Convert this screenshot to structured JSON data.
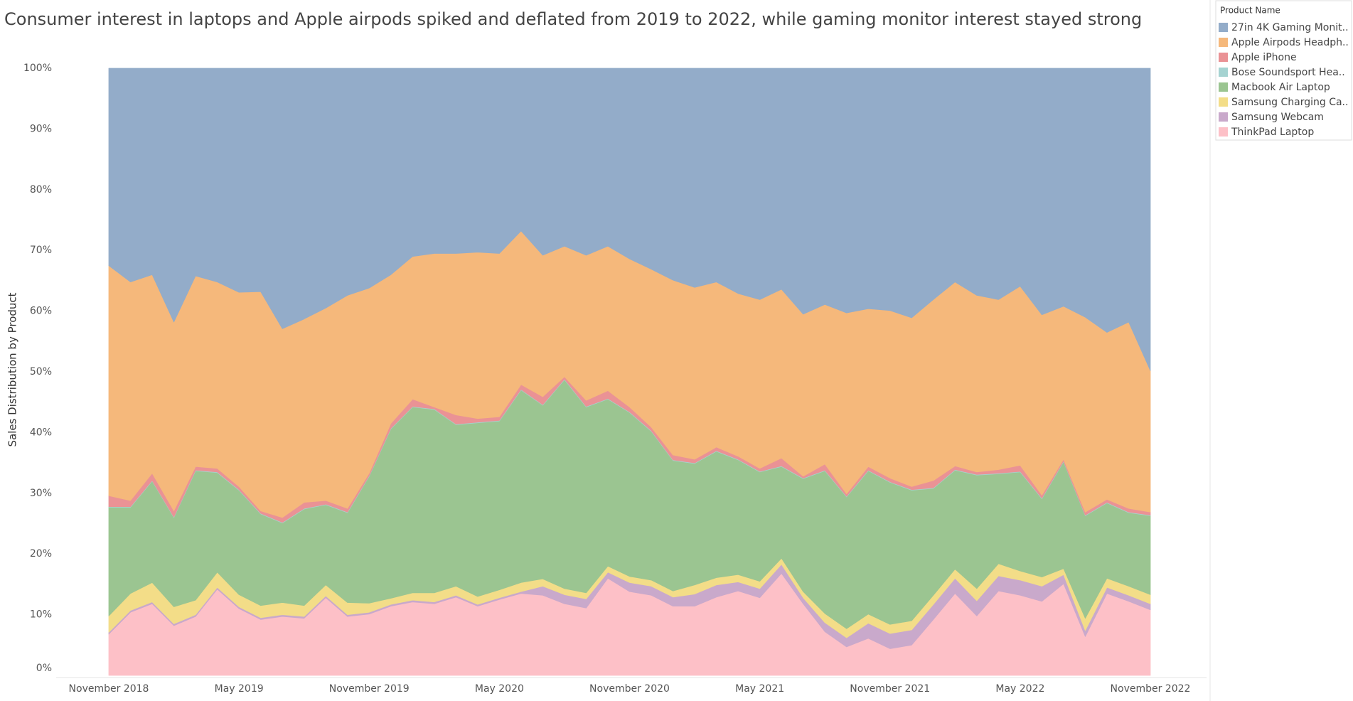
{
  "chart_data": {
    "type": "stacked_area",
    "title": "Consumer interest in laptops and Apple airpods spiked and deflated from 2019 to 2022, while gaming monitor interest stayed strong",
    "y_label": "Sales Distribution by Product",
    "legend_title": "Product Name",
    "legend": "right",
    "grid": false,
    "ylim": [
      0,
      100
    ],
    "yticks": [
      {
        "value": 0,
        "label": "0%"
      },
      {
        "value": 10,
        "label": "10%"
      },
      {
        "value": 20,
        "label": "20%"
      },
      {
        "value": 30,
        "label": "30%"
      },
      {
        "value": 40,
        "label": "40%"
      },
      {
        "value": 50,
        "label": "50%"
      },
      {
        "value": 60,
        "label": "60%"
      },
      {
        "value": 70,
        "label": "70%"
      },
      {
        "value": 80,
        "label": "80%"
      },
      {
        "value": 90,
        "label": "90%"
      },
      {
        "value": 100,
        "label": "100%"
      }
    ],
    "categories": [
      "November 2018",
      null,
      null,
      null,
      null,
      null,
      "May 2019",
      null,
      null,
      null,
      null,
      null,
      "November 2019",
      null,
      null,
      null,
      null,
      null,
      "May 2020",
      null,
      null,
      null,
      null,
      null,
      "November 2020",
      null,
      null,
      null,
      null,
      null,
      "May 2021",
      null,
      null,
      null,
      null,
      null,
      "November 2021",
      null,
      null,
      null,
      null,
      null,
      "May 2022",
      null,
      null,
      null,
      null,
      null,
      "November 2022"
    ],
    "series": [
      {
        "name": "27in 4K Gaming Monit..",
        "color": "#93acc9",
        "values": [
          32.5,
          35.2,
          34,
          41.8,
          34.2,
          35.2,
          36.9,
          36.8,
          42.9,
          41.3,
          39.5,
          37.4,
          36.2,
          34,
          31,
          30.5,
          30.5,
          30.3,
          30.5,
          26.8,
          30.8,
          29.3,
          30.8,
          29.3,
          31.4,
          33.1,
          34.9,
          36.1,
          35.2,
          37.1,
          38.1,
          36.4,
          40.5,
          38.9,
          40.3,
          39.6,
          39.9,
          41.1,
          38.1,
          35.2,
          37.4,
          38.1,
          35.9,
          40.6,
          39.2,
          41,
          43.5,
          41.8,
          49.8
        ]
      },
      {
        "name": "Apple Airpods Headph..",
        "color": "#f5b87b",
        "values": [
          37.9,
          36,
          32.7,
          31.1,
          31.4,
          30.7,
          32,
          36.1,
          31.1,
          30.2,
          31.7,
          35.1,
          30.5,
          24.5,
          23.5,
          25.3,
          26.6,
          27.4,
          26.9,
          25.3,
          23.3,
          21.5,
          23.9,
          23.8,
          24.4,
          26,
          28.8,
          28.3,
          27.2,
          26.8,
          27.8,
          27.8,
          26.7,
          26.3,
          29.8,
          26,
          27.6,
          27.8,
          29.8,
          30.3,
          29.1,
          28,
          29.5,
          29.7,
          25.2,
          32.1,
          27.5,
          30.7,
          23.3
        ]
      },
      {
        "name": "Apple iPhone",
        "color": "#ea9295",
        "values": [
          1.8,
          1,
          1.2,
          1,
          0.6,
          0.6,
          0.5,
          0.4,
          0.8,
          1,
          0.6,
          0.6,
          0.4,
          0.8,
          1.2,
          0.3,
          1.5,
          0.6,
          0.6,
          0.8,
          1.3,
          0.4,
          1,
          1.3,
          0.8,
          0.6,
          0.8,
          0.6,
          0.6,
          0.5,
          0.5,
          1.3,
          0.3,
          1,
          0.4,
          0.6,
          0.6,
          0.5,
          1.2,
          0.6,
          0.4,
          0.6,
          1,
          0.5,
          0.3,
          0.5,
          0.5,
          0.6,
          0.5
        ]
      },
      {
        "name": "Bose Soundsport Hea..",
        "color": "#a5d3d1",
        "values": [
          0.1,
          0.1,
          0.1,
          0.1,
          0.1,
          0.1,
          0.1,
          0.1,
          0.1,
          0.1,
          0.1,
          0.1,
          0.1,
          0.1,
          0.1,
          0.1,
          0.1,
          0.1,
          0.1,
          0.1,
          0.1,
          0.1,
          0.1,
          0.1,
          0.1,
          0.1,
          0.1,
          0.1,
          0.1,
          0.1,
          0.1,
          0.1,
          0.1,
          0.1,
          0.1,
          0.1,
          0.1,
          0.1,
          0.1,
          0.1,
          0.1,
          0.1,
          0.1,
          0.1,
          0.1,
          0.1,
          0.1,
          0.1,
          0.1
        ]
      },
      {
        "name": "Macbook Air Laptop",
        "color": "#9bc591",
        "values": [
          17.9,
          14.2,
          16.7,
          14.7,
          21.3,
          16.4,
          17.2,
          15.1,
          13.1,
          15.9,
          13.2,
          14.8,
          20.9,
          27.9,
          30.6,
          30.2,
          26.6,
          28.6,
          27.8,
          31.7,
          28.6,
          34.4,
          30.6,
          27.5,
          27,
          24.5,
          21.5,
          20,
          20.8,
          18.9,
          18,
          15.1,
          18.6,
          23.5,
          21.7,
          23.6,
          23.4,
          21.5,
          17.6,
          16.3,
          18.7,
          14.8,
          16.3,
          12.9,
          17.6,
          16.9,
          12.4,
          12.1,
          13
        ]
      },
      {
        "name": "Samsung Charging Ca..",
        "color": "#f3dd88",
        "values": [
          2.7,
          2.8,
          3.2,
          2.8,
          2.4,
          2.5,
          2,
          2,
          2,
          1.8,
          1.8,
          2,
          1.5,
          1,
          1.2,
          1.5,
          1.5,
          1.3,
          1.3,
          1.5,
          1.2,
          1,
          1,
          1,
          1,
          1,
          1,
          1.5,
          1.2,
          1.2,
          1.2,
          1,
          1,
          1.5,
          1.5,
          1.5,
          1.5,
          1.5,
          1.5,
          1.5,
          2,
          2,
          1.5,
          1.5,
          1,
          2,
          1.5,
          1.5,
          1.5
        ]
      },
      {
        "name": "Samsung Webcam",
        "color": "#c9a9cb",
        "values": [
          0.3,
          0.3,
          0.3,
          0.3,
          0.3,
          0.3,
          0.3,
          0.3,
          0.3,
          0.3,
          0.3,
          0.3,
          0.3,
          0.3,
          0.3,
          0.3,
          0.3,
          0.3,
          0.3,
          0.3,
          1.5,
          1.5,
          1.5,
          1,
          1.5,
          1.5,
          1.5,
          2,
          2,
          1.5,
          1.5,
          1.5,
          1,
          1.5,
          1.5,
          2.5,
          2.5,
          2.5,
          2.5,
          2.5,
          2.5,
          2.5,
          2.5,
          2.5,
          1.5,
          1,
          1,
          1,
          1
        ]
      },
      {
        "name": "ThinkPad Laptop",
        "color": "#fdc0c7",
        "values": [
          6.8,
          10.4,
          11.8,
          8.2,
          9.7,
          14.2,
          11,
          9.2,
          9.7,
          9.4,
          12.8,
          9.7,
          10.1,
          11.4,
          12.1,
          11.8,
          12.9,
          11.4,
          12.5,
          13.5,
          13.2,
          11.8,
          11.1,
          16,
          13.8,
          13.2,
          11.4,
          11.4,
          12.9,
          13.9,
          12.8,
          16.8,
          11.8,
          7.2,
          4.7,
          6.1,
          4.4,
          5,
          9.2,
          13.5,
          9.8,
          13.9,
          13.2,
          12.2,
          15.1,
          6.4,
          13.5,
          12.2,
          10.8
        ]
      }
    ]
  }
}
